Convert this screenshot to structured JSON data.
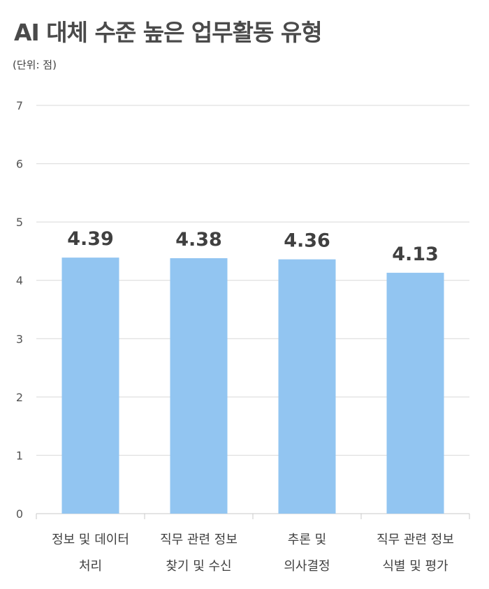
{
  "chart_data": {
    "type": "bar",
    "title": "AI 대체 수준 높은 업무활동 유형",
    "unit_note": "(단위: 점)",
    "categories": [
      [
        "정보 및 데이터",
        "처리"
      ],
      [
        "직무 관련 정보",
        "찾기 및 수신"
      ],
      [
        "추론 및",
        "의사결정"
      ],
      [
        "직무 관련 정보",
        "식별 및 평가"
      ]
    ],
    "values": [
      4.39,
      4.38,
      4.36,
      4.13
    ],
    "value_labels": [
      "4.39",
      "4.38",
      "4.36",
      "4.13"
    ],
    "ylim": [
      0,
      7
    ],
    "yticks": [
      "0",
      "1",
      "2",
      "3",
      "4",
      "5",
      "6",
      "7"
    ],
    "grid": true,
    "colors": {
      "bar": "#92c5f1",
      "grid": "#d9d9d9",
      "axis": "#c8c8c8"
    }
  }
}
